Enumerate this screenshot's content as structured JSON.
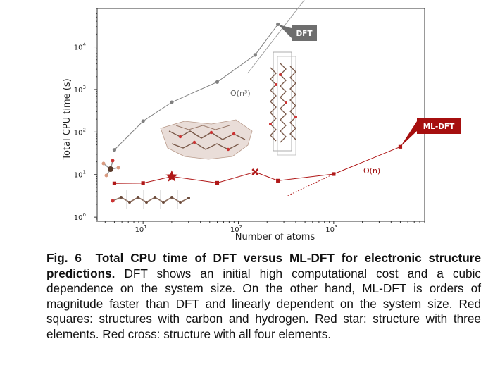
{
  "chart_data": {
    "type": "scatter",
    "xlabel": "Number of atoms",
    "ylabel": "Total CPU time (s)",
    "xscale": "log",
    "yscale": "log",
    "xlim": [
      3.3,
      9000
    ],
    "ylim": [
      0.8,
      80000
    ],
    "xticks": [
      {
        "value": 10,
        "label": "10",
        "exp": "1"
      },
      {
        "value": 100,
        "label": "10",
        "exp": "2"
      },
      {
        "value": 1000,
        "label": "10",
        "exp": "3"
      }
    ],
    "yticks": [
      {
        "value": 1,
        "label": "10",
        "exp": "0"
      },
      {
        "value": 10,
        "label": "10",
        "exp": "1"
      },
      {
        "value": 100,
        "label": "10",
        "exp": "2"
      },
      {
        "value": 1000,
        "label": "10",
        "exp": "3"
      },
      {
        "value": 10000,
        "label": "10",
        "exp": "4"
      }
    ],
    "grid": false,
    "series": [
      {
        "name": "DFT",
        "color": "#808080",
        "x": [
          5,
          10,
          20,
          60,
          150,
          260
        ],
        "y": [
          38,
          180,
          500,
          1500,
          6500,
          34000
        ]
      },
      {
        "name": "ML-DFT",
        "color": "#b01818",
        "x": [
          5,
          10,
          20,
          60,
          150,
          260,
          1000,
          5000
        ],
        "y": [
          6.2,
          6.3,
          9.0,
          6.4,
          11.5,
          7.2,
          10.3,
          45
        ],
        "markers": [
          "square",
          "square",
          "star",
          "square",
          "cross",
          "square",
          "square",
          "square"
        ]
      }
    ],
    "fits": [
      {
        "label": "O(n³)",
        "color": "#9a9a9a",
        "x": [
          125,
          1100
        ],
        "y": [
          2400,
          1300000
        ]
      },
      {
        "label": "O(n)",
        "color": "#b01818",
        "x": [
          330,
          1000
        ],
        "y": [
          3.2,
          10.3
        ]
      }
    ],
    "badges": [
      {
        "label": "DFT",
        "color": "#6e6e6e"
      },
      {
        "label": "ML-DFT",
        "color": "#a60f0f"
      }
    ]
  },
  "caption": {
    "fig_label": "Fig. 6",
    "title": "Total CPU time of DFT versus ML-DFT for electronic structure predictions.",
    "body": "DFT shows an initial high computational cost and a cubic dependence on the system size. On the other hand, ML-DFT is orders of magnitude faster than DFT and linearly dependent on the system size. Red squares: structures with carbon and hydrogen. Red star: structure with three elements. Red cross: structure with all four elements."
  }
}
